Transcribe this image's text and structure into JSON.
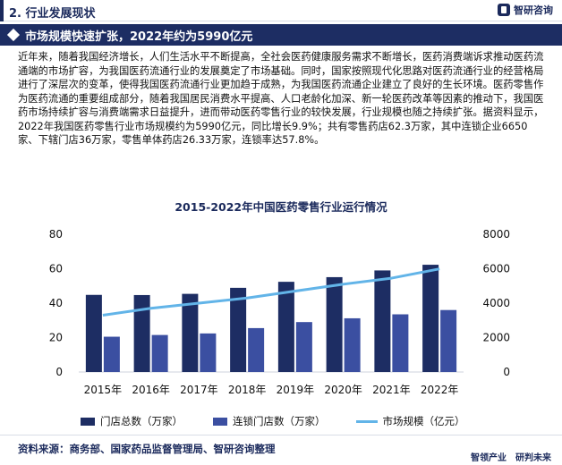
{
  "header": {
    "section_title": "2. 行业发展现状",
    "logo_text": "智研咨询"
  },
  "banner": {
    "title": "市场规模快速扩张，2022年约为5990亿元"
  },
  "body": {
    "paragraph": "近年来，随着我国经济增长，人们生活水平不断提高，全社会医药健康服务需求不断增长，医药消费端诉求推动医药流通端的市场扩容，为我国医药流通行业的发展奠定了市场基础。同时，国家按照现代化思路对医药流通行业的经营格局进行了深层次的变革，使得我国医药流通行业更加趋于成熟，为我国医药流通企业建立了良好的生长环境。医药零售作为医药流通的重要组成部分，随着我国居民消费水平提高、人口老龄化加深、新一轮医药改革等因素的推动下，我国医药市场持续扩容与消费端需求日益提升，进而带动医药零售行业的较快发展，行业规模也随之持续扩张。据资料显示，2022年我国医药零售行业市场规模约为5990亿元，同比增长9.9%；共有零售药店62.3万家，其中连锁企业6650家、下辖门店36万家，零售单体药店26.33万家，连锁率达57.8%。"
  },
  "chart_data": {
    "type": "bar",
    "title": "2015-2022年中国医药零售行业运行情况",
    "categories": [
      "2015年",
      "2016年",
      "2017年",
      "2018年",
      "2019年",
      "2020年",
      "2021年",
      "2022年"
    ],
    "series": [
      {
        "name": "门店总数（万家）",
        "type": "bar",
        "axis": "left",
        "color": "#1d2d63",
        "values": [
          44.8,
          44.7,
          45.4,
          48.9,
          52.4,
          55.1,
          59.0,
          62.3
        ]
      },
      {
        "name": "连锁门店数（万家）",
        "type": "bar",
        "axis": "left",
        "color": "#3b4fa1",
        "values": [
          20.5,
          21.5,
          22.4,
          25.5,
          29.0,
          31.2,
          33.5,
          36.0
        ]
      },
      {
        "name": "市场规模（亿元）",
        "type": "line",
        "axis": "right",
        "color": "#62b4e8",
        "values": [
          3300,
          3700,
          4000,
          4300,
          4700,
          5100,
          5450,
          5990
        ]
      }
    ],
    "left_axis": {
      "ylim": [
        0,
        80
      ],
      "ticks": [
        "0",
        "20",
        "40",
        "60",
        "80"
      ]
    },
    "right_axis": {
      "ylim": [
        0,
        8000
      ],
      "ticks": [
        "0",
        "2000",
        "4000",
        "6000",
        "8000"
      ]
    },
    "grid": false,
    "legend_position": "bottom"
  },
  "footer": {
    "source": "资料来源：商务部、国家药品监督管理局、智研咨询整理",
    "slogan": "智领产业　研判未来"
  }
}
